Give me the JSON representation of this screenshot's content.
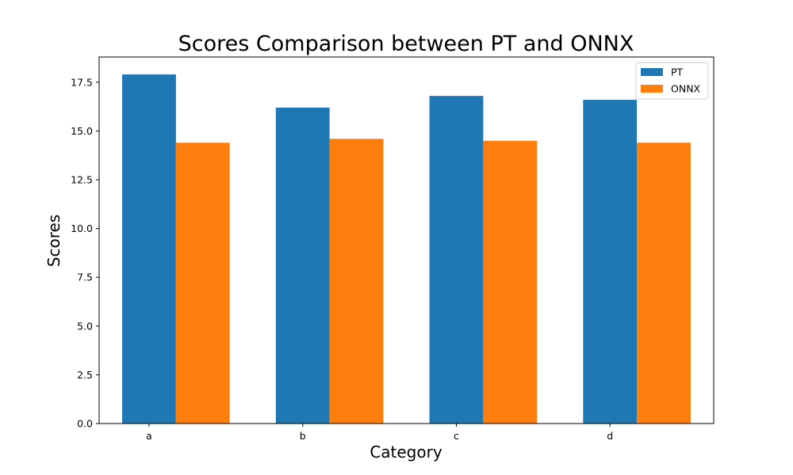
{
  "chart_data": {
    "type": "bar",
    "title": "Scores Comparison between PT and ONNX",
    "xlabel": "Category",
    "ylabel": "Scores",
    "categories": [
      "a",
      "b",
      "c",
      "d"
    ],
    "series": [
      {
        "name": "PT",
        "values": [
          17.9,
          16.2,
          16.8,
          16.6
        ],
        "color": "#1f77b4"
      },
      {
        "name": "ONNX",
        "values": [
          14.4,
          14.6,
          14.5,
          14.4
        ],
        "color": "#ff7f0e"
      }
    ],
    "ylim": [
      0,
      18.795
    ],
    "yticks": [
      "0.0",
      "2.5",
      "5.0",
      "7.5",
      "10.0",
      "12.5",
      "15.0",
      "17.5"
    ],
    "legend_position": "top-right",
    "grid": false
  }
}
